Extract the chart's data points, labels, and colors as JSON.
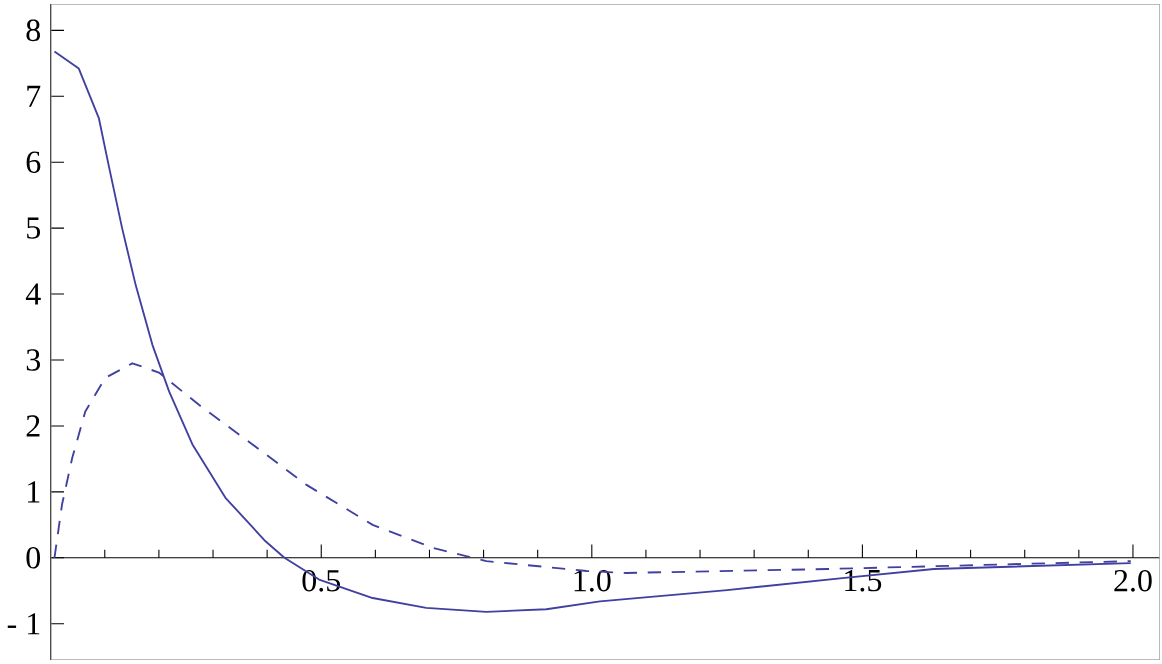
{
  "chart_data": {
    "type": "line",
    "xlim": [
      0,
      2.05
    ],
    "ylim": [
      -1.55,
      8.4
    ],
    "xticks": [
      {
        "value": 0.1,
        "label": null
      },
      {
        "value": 0.2,
        "label": null
      },
      {
        "value": 0.3,
        "label": null
      },
      {
        "value": 0.4,
        "label": null
      },
      0.5,
      {
        "value": 0.6,
        "label": null
      },
      {
        "value": 0.7,
        "label": null
      },
      {
        "value": 0.8,
        "label": null
      },
      {
        "value": 0.9,
        "label": null
      },
      {
        "value": 1,
        "label": "1.0"
      },
      {
        "value": 1.1,
        "label": null
      },
      {
        "value": 1.2,
        "label": null
      },
      {
        "value": 1.3,
        "label": null
      },
      {
        "value": 1.4,
        "label": null
      },
      1.5,
      {
        "value": 1.6,
        "label": null
      },
      {
        "value": 1.7,
        "label": null
      },
      {
        "value": 1.8,
        "label": null
      },
      {
        "value": 1.9,
        "label": null
      },
      {
        "value": 2,
        "label": "2.0"
      }
    ],
    "yticks": [
      {
        "value": -1,
        "label": "- 1"
      },
      0,
      1,
      2,
      3,
      4,
      5,
      6,
      7,
      8
    ],
    "series": [
      {
        "color": "#4040a0",
        "line_style": "solid",
        "x": [
          0.007,
          0.052,
          0.089,
          0.107,
          0.132,
          0.157,
          0.188,
          0.219,
          0.262,
          0.323,
          0.397,
          0.432,
          0.496,
          0.595,
          0.694,
          0.805,
          0.916,
          1.015,
          1.25,
          1.472,
          1.632,
          1.996
        ],
        "values": [
          7.68,
          7.42,
          6.67,
          5.96,
          5.0,
          4.14,
          3.23,
          2.52,
          1.72,
          0.91,
          0.25,
          0,
          -0.33,
          -0.61,
          -0.76,
          -0.82,
          -0.78,
          -0.66,
          -0.49,
          -0.3,
          -0.17,
          -0.08
        ]
      },
      {
        "color": "#4040a0",
        "line_style": "dashed",
        "x": [
          0.007,
          0.021,
          0.04,
          0.064,
          0.101,
          0.151,
          0.2,
          0.274,
          0.373,
          0.472,
          0.595,
          0.706,
          0.805,
          0.99,
          1.064,
          1.435,
          1.996
        ],
        "values": [
          0,
          0.81,
          1.52,
          2.22,
          2.73,
          2.95,
          2.81,
          2.32,
          1.72,
          1.11,
          0.5,
          0.15,
          -0.05,
          -0.2,
          -0.23,
          -0.17,
          -0.05
        ]
      }
    ]
  }
}
